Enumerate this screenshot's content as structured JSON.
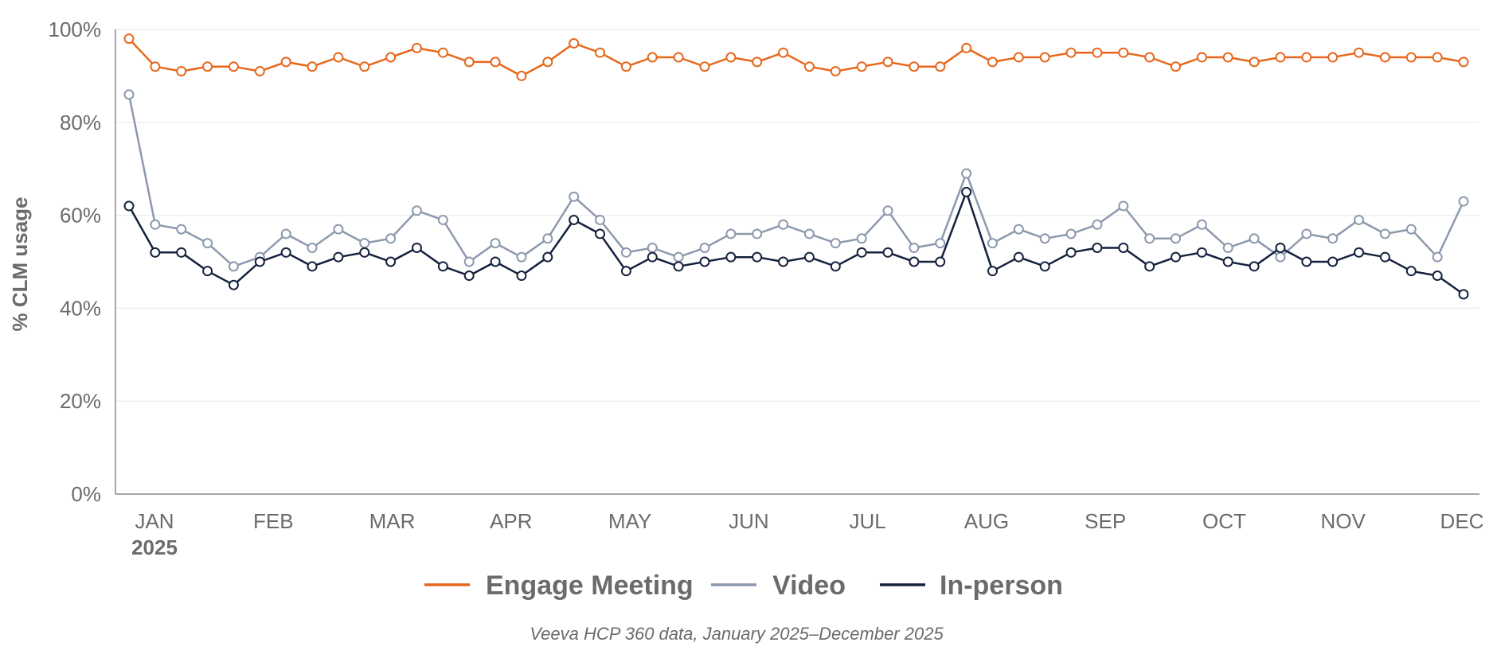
{
  "chart_data": {
    "type": "line",
    "title": "",
    "ylabel": "% CLM usage",
    "xlabel": "",
    "ylim": [
      0,
      100
    ],
    "y_ticks": [
      "0%",
      "20%",
      "40%",
      "60%",
      "80%",
      "100%"
    ],
    "y_tick_values": [
      0,
      20,
      40,
      60,
      80,
      100
    ],
    "x_count": 52,
    "month_labels": [
      "JAN",
      "FEB",
      "MAR",
      "APR",
      "MAY",
      "JUN",
      "JUL",
      "AUG",
      "SEP",
      "OCT",
      "NOV",
      "DEC"
    ],
    "year_label": "2025",
    "grid": true,
    "legend_placement": "bottom-center",
    "series": [
      {
        "name": "Engage Meeting",
        "color": "#e8671c",
        "marker_fill": "#ffffff",
        "values": [
          98,
          92,
          91,
          92,
          92,
          91,
          93,
          92,
          94,
          92,
          94,
          96,
          95,
          93,
          93,
          90,
          93,
          97,
          95,
          92,
          94,
          94,
          92,
          94,
          93,
          95,
          92,
          91,
          92,
          93,
          92,
          92,
          96,
          93,
          94,
          94,
          95,
          95,
          95,
          94,
          92,
          94,
          94,
          93,
          94,
          94,
          94,
          95,
          94,
          94,
          94,
          93
        ]
      },
      {
        "name": "Video",
        "color": "#8c99ad",
        "marker_fill": "#ffffff",
        "values": [
          86,
          58,
          57,
          54,
          49,
          51,
          56,
          53,
          57,
          54,
          55,
          61,
          59,
          50,
          54,
          51,
          55,
          64,
          59,
          52,
          53,
          51,
          53,
          56,
          56,
          58,
          56,
          54,
          55,
          61,
          53,
          54,
          69,
          54,
          57,
          55,
          56,
          58,
          62,
          55,
          55,
          58,
          53,
          55,
          51,
          56,
          55,
          59,
          56,
          57,
          51,
          63
        ]
      },
      {
        "name": "In-person",
        "color": "#14213d",
        "marker_fill": "#ffffff",
        "values": [
          62,
          52,
          52,
          48,
          45,
          50,
          52,
          49,
          51,
          52,
          50,
          53,
          49,
          47,
          50,
          47,
          51,
          59,
          56,
          48,
          51,
          49,
          50,
          51,
          51,
          50,
          51,
          49,
          52,
          52,
          50,
          50,
          65,
          48,
          51,
          49,
          52,
          53,
          53,
          49,
          51,
          52,
          50,
          49,
          53,
          50,
          50,
          52,
          51,
          48,
          47,
          43
        ]
      }
    ],
    "source_note": "Veeva HCP 360 data, January 2025–December 2025"
  }
}
